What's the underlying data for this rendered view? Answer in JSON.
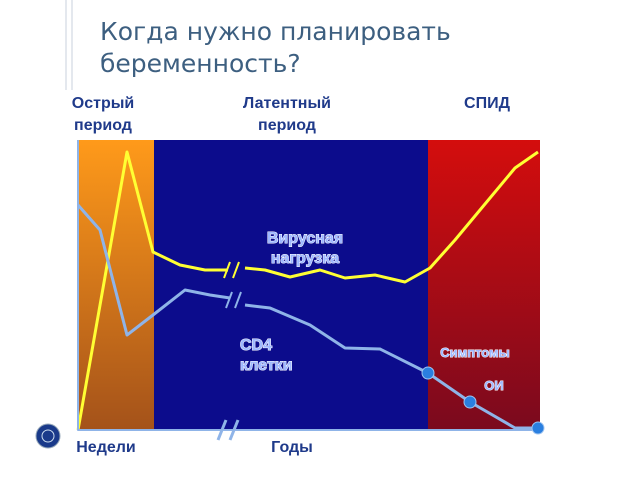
{
  "title": [
    "Когда нужно планировать",
    "беременность?"
  ],
  "phases": [
    [
      "Острый",
      "период"
    ],
    [
      "Латентный",
      "период"
    ],
    [
      "СПИД"
    ]
  ],
  "viral_load": [
    "Вирусная",
    "нагрузка"
  ],
  "cd4": [
    "CD4",
    "клетки"
  ],
  "symptoms": "Симптомы",
  "oi": "ОИ",
  "x_labels": [
    "Недели",
    "Годы"
  ]
}
